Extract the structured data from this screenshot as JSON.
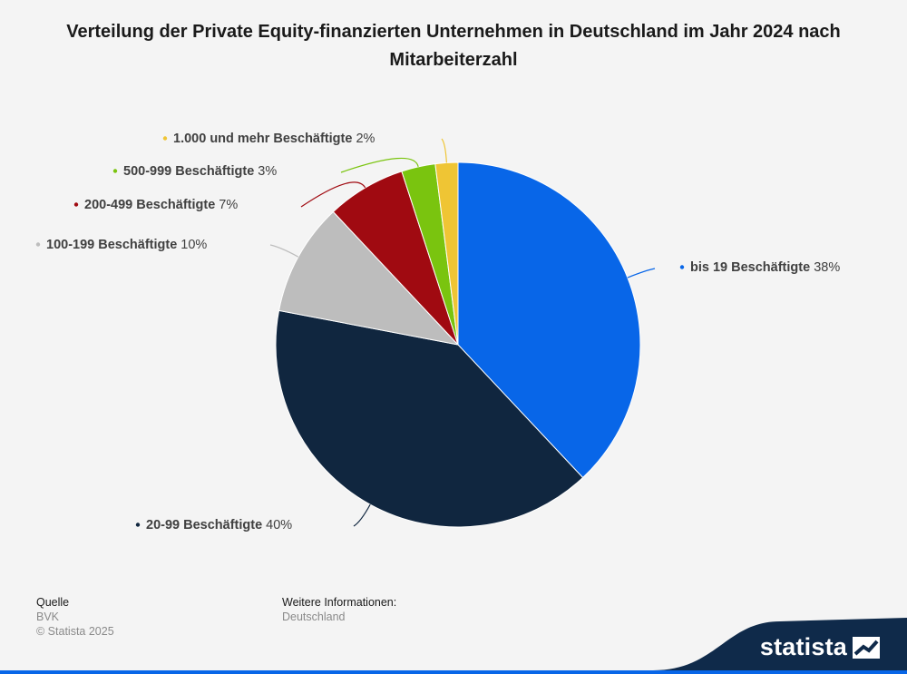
{
  "title": "Verteilung der Private Equity-finanzierten Unternehmen in Deutschland im Jahr 2024 nach Mitarbeiterzahl",
  "chart_data": {
    "type": "pie",
    "title": "Verteilung der Private Equity-finanzierten Unternehmen in Deutschland im Jahr 2024 nach Mitarbeiterzahl",
    "unit": "%",
    "slices": [
      {
        "label": "bis 19 Beschäftigte",
        "value": 38,
        "value_label": "38%",
        "color": "#0866e8"
      },
      {
        "label": "20-99 Beschäftigte",
        "value": 40,
        "value_label": "40%",
        "color": "#10263f"
      },
      {
        "label": "100-199 Beschäftigte",
        "value": 10,
        "value_label": "10%",
        "color": "#bdbdbd"
      },
      {
        "label": "200-499 Beschäftigte",
        "value": 7,
        "value_label": "7%",
        "color": "#a00a11"
      },
      {
        "label": "500-999 Beschäftigte",
        "value": 3,
        "value_label": "3%",
        "color": "#7ac40f"
      },
      {
        "label": "1.000 und mehr Beschäftigte",
        "value": 2,
        "value_label": "2%",
        "color": "#efc534"
      }
    ],
    "start_angle": "12 o'clock",
    "direction": "clockwise",
    "legend": "none (callout labels)"
  },
  "footer": {
    "source_heading": "Quelle",
    "source_value": "BVK",
    "copyright": "© Statista 2025",
    "info_heading": "Weitere Informationen:",
    "info_value": "Deutschland"
  },
  "brand": {
    "name": "statista",
    "band_color": "#0f2a4a",
    "accent_color": "#0866e8"
  }
}
